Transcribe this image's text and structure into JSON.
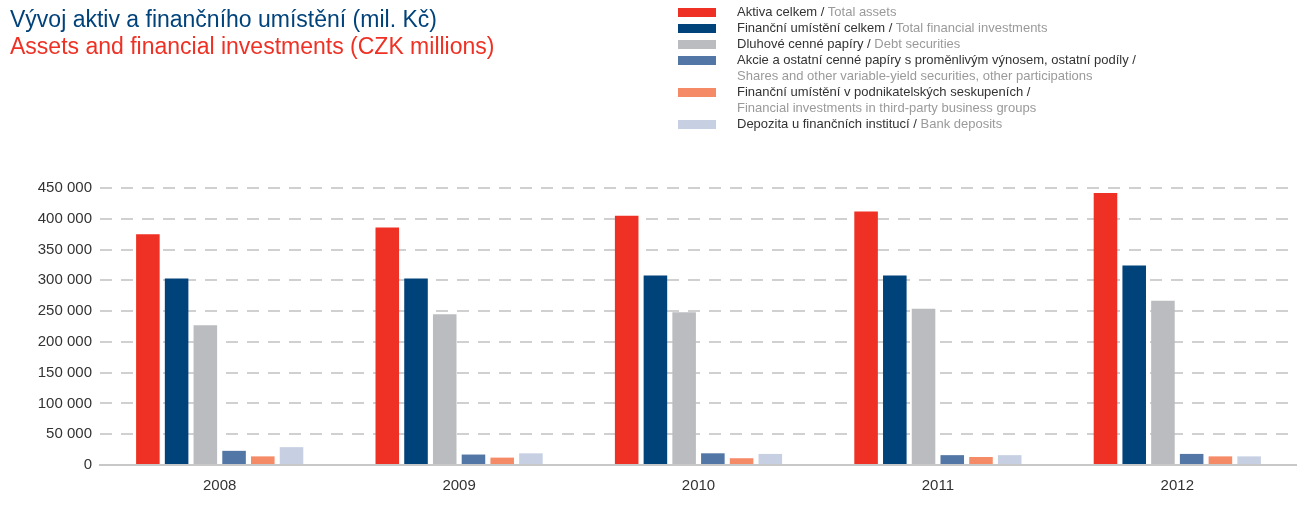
{
  "chart_data": {
    "type": "bar",
    "title": "Vývoj aktiv a finančního umístění (mil. Kč)",
    "subtitle": "Assets and financial investments (CZK millions)",
    "categories": [
      "2008",
      "2009",
      "2010",
      "2011",
      "2012"
    ],
    "series": [
      {
        "name": "Aktiva celkem / Total assets",
        "color": "#ee3124",
        "values": [
          375000,
          386000,
          405000,
          412000,
          442000
        ]
      },
      {
        "name": "Finanční umístění celkem / Total financial investments",
        "color": "#00427a",
        "values": [
          303000,
          303000,
          308000,
          308000,
          324000
        ]
      },
      {
        "name": "Dluhové cenné papíry / Debt securities",
        "color": "#bbbcc0",
        "values": [
          227000,
          245000,
          248000,
          254000,
          267000
        ]
      },
      {
        "name": "Akcie a ostatní cenné papíry s proměnlivým výnosem, ostatní podíly / Shares and other variable-yield securities, other participations",
        "color": "#5276a6",
        "values": [
          23000,
          17000,
          19000,
          16000,
          18000
        ]
      },
      {
        "name": "Finanční umístění v podnikatelských seskupeních / Financial investments in third-party business groups",
        "color": "#f58a67",
        "values": [
          14000,
          12000,
          11000,
          13000,
          14000
        ]
      },
      {
        "name": "Depozita u finančních institucí / Bank deposits",
        "color": "#c7d0e2",
        "values": [
          29000,
          19000,
          18000,
          16000,
          14000
        ]
      }
    ],
    "ylim": [
      0,
      450000
    ],
    "yticks": [
      0,
      50000,
      100000,
      150000,
      200000,
      250000,
      300000,
      350000,
      400000,
      450000
    ],
    "grid": "y",
    "legend": "top right"
  }
}
